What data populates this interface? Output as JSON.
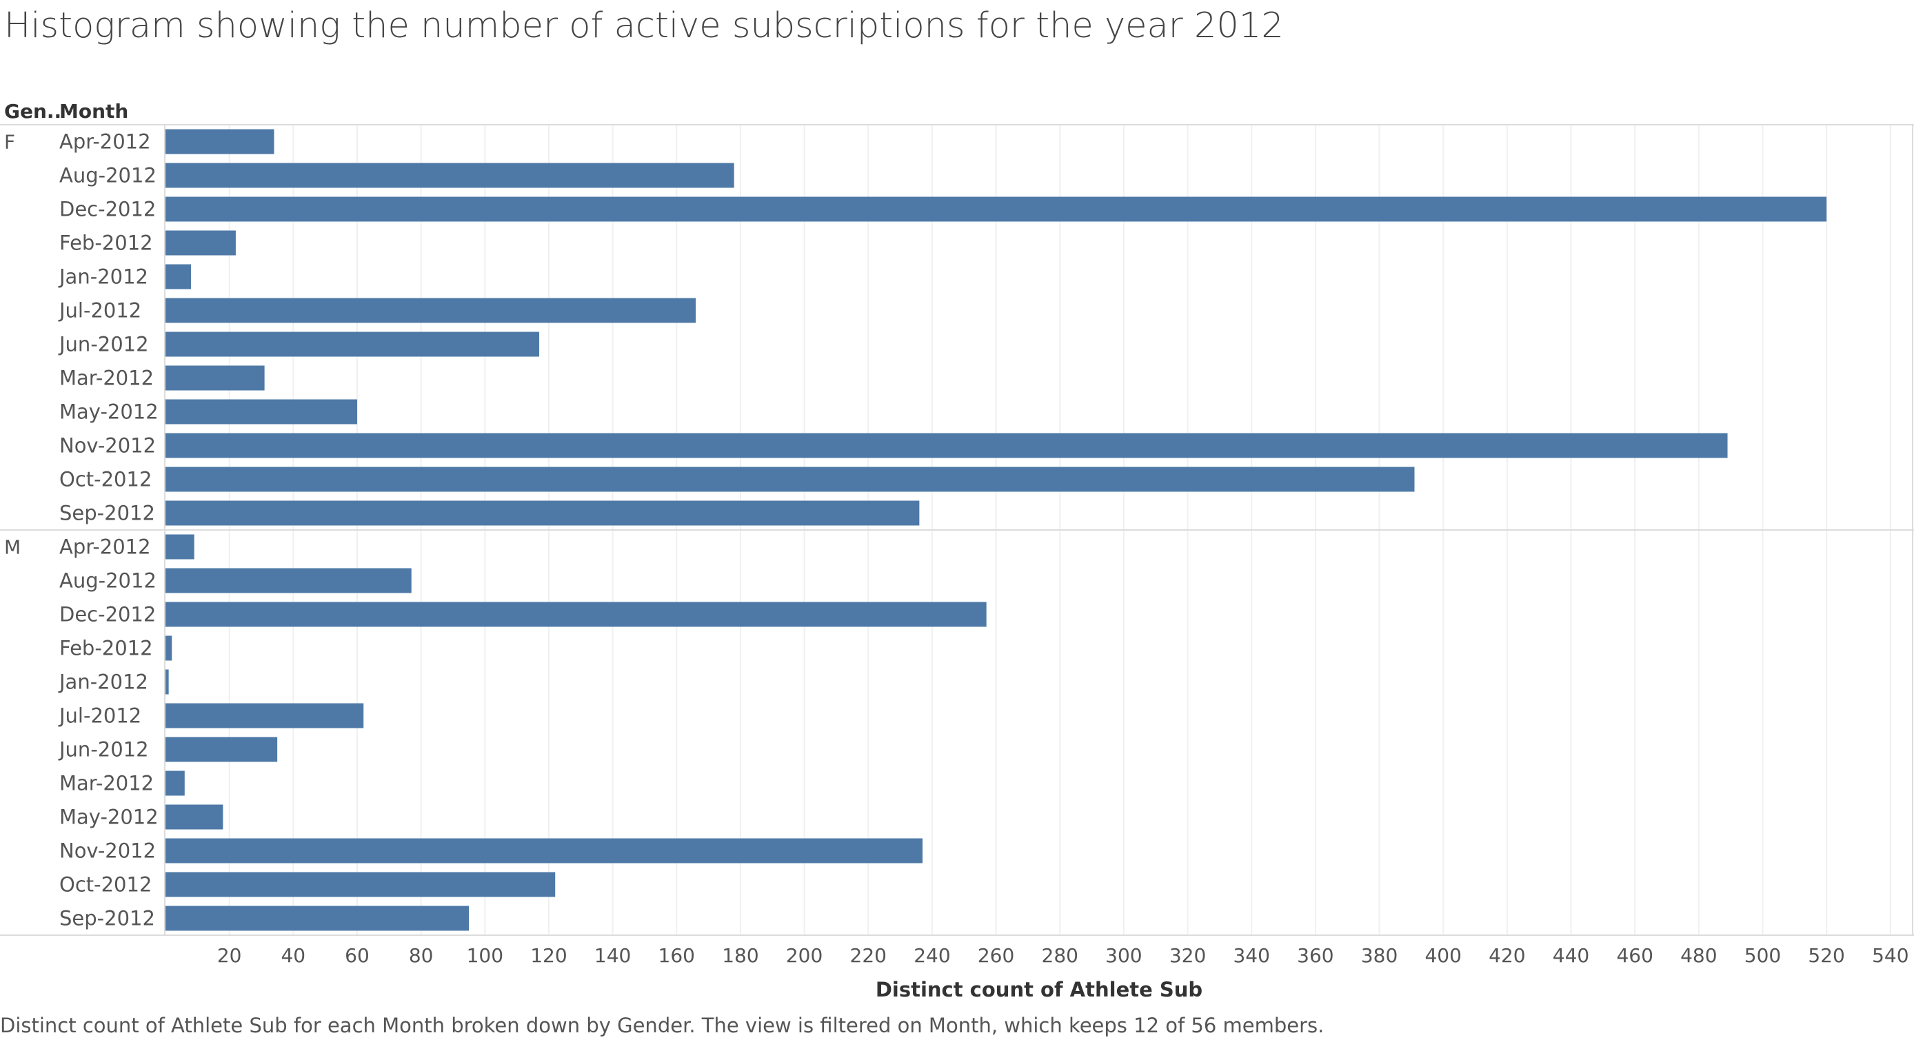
{
  "title": "Histogram showing the number of active subscriptions for the year 2012",
  "caption": "Distinct count of Athlete Sub for each Month broken down by Gender. The view is filtered on Month, which keeps 12 of 56 members.",
  "headers": {
    "gender": "Gen..",
    "month": "Month"
  },
  "colors": {
    "bar": "#4e79a7",
    "grid": "#f0f0f0",
    "divider": "#dcdcdc",
    "text": "#555555"
  },
  "chart_data": {
    "type": "bar",
    "orientation": "horizontal",
    "xlabel": "Distinct count of Athlete Sub",
    "xlim": [
      0,
      545
    ],
    "xticks": [
      20,
      40,
      60,
      80,
      100,
      120,
      140,
      160,
      180,
      200,
      220,
      240,
      260,
      280,
      300,
      320,
      340,
      360,
      380,
      400,
      420,
      440,
      460,
      480,
      500,
      520,
      540
    ],
    "grid": true,
    "groups": [
      {
        "name": "F",
        "categories": [
          "Apr-2012",
          "Aug-2012",
          "Dec-2012",
          "Feb-2012",
          "Jan-2012",
          "Jul-2012",
          "Jun-2012",
          "Mar-2012",
          "May-2012",
          "Nov-2012",
          "Oct-2012",
          "Sep-2012"
        ],
        "values": [
          34,
          178,
          520,
          22,
          8,
          166,
          117,
          31,
          60,
          489,
          391,
          236
        ]
      },
      {
        "name": "M",
        "categories": [
          "Apr-2012",
          "Aug-2012",
          "Dec-2012",
          "Feb-2012",
          "Jan-2012",
          "Jul-2012",
          "Jun-2012",
          "Mar-2012",
          "May-2012",
          "Nov-2012",
          "Oct-2012",
          "Sep-2012"
        ],
        "values": [
          9,
          77,
          257,
          2,
          1,
          62,
          35,
          6,
          18,
          237,
          122,
          95
        ]
      }
    ]
  }
}
